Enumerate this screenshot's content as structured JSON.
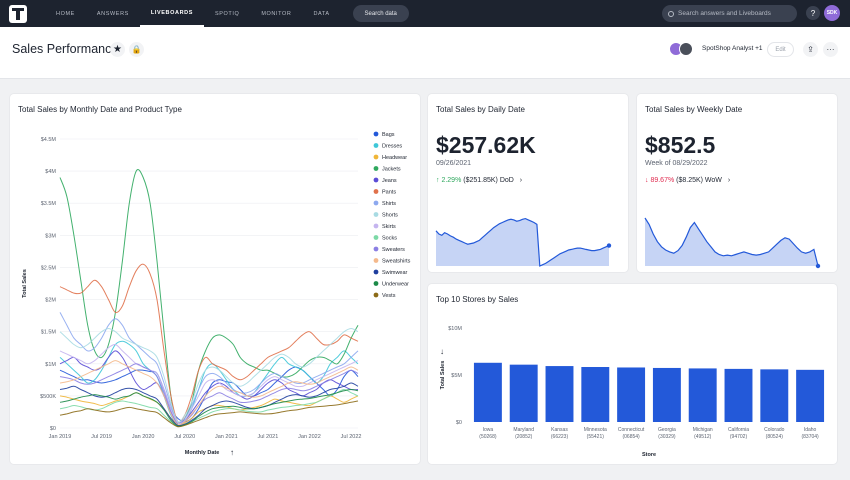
{
  "nav": {
    "tabs": [
      {
        "label": "HOME"
      },
      {
        "label": "ANSWERS"
      },
      {
        "label": "LIVEBOARDS"
      },
      {
        "label": "SPOTIQ"
      },
      {
        "label": "MONITOR"
      },
      {
        "label": "DATA"
      }
    ],
    "active_tab": "LIVEBOARDS",
    "search_data_label": "Search data",
    "global_search_placeholder": "Search answers and Liveboards",
    "help_label": "?",
    "user_initials": "SDK"
  },
  "header": {
    "title": "Sales Performance",
    "star_icon": "★",
    "lock_icon": "🔒",
    "shared_with": "SpotShop Analyst +1",
    "edit_label": "Edit",
    "share_icon": "⇪",
    "more_icon": "···"
  },
  "cards": {
    "main": {
      "title": "Total Sales by Monthly Date and Product Type"
    },
    "daily": {
      "title": "Total Sales by Daily Date",
      "value": "$257.62K",
      "date": "09/26/2021",
      "change_pct": "↑ 2.29%",
      "change_abs": "($251.85K) DoD",
      "change_color": "#2fa85e"
    },
    "weekly": {
      "title": "Total Sales by Weekly Date",
      "value": "$852.5",
      "date": "Week of 08/29/2022",
      "change_pct": "↓ 89.67%",
      "change_abs": "($8.25K) WoW",
      "change_color": "#e02c50"
    },
    "stores": {
      "title": "Top 10 Stores by Sales"
    }
  },
  "chart_data": [
    {
      "type": "line",
      "title": "Total Sales by Monthly Date and Product Type",
      "xlabel": "Monthly Date",
      "ylabel": "Total Sales",
      "x_tick_labels": [
        "Jan 2019",
        "Jul 2019",
        "Jan 2020",
        "Jul 2020",
        "Jan 2021",
        "Jul 2021",
        "Jan 2022",
        "Jul 2022"
      ],
      "y_tick_labels": [
        "$0",
        "$500K",
        "$1M",
        "$1.5M",
        "$2M",
        "$2.5M",
        "$3M",
        "$3.5M",
        "$4M",
        "$4.5M"
      ],
      "ylim": [
        0,
        4500000
      ],
      "legend_position": "right",
      "x_count": 44,
      "series": [
        {
          "name": "Bags",
          "color": "#2359d9",
          "values": [
            0.9,
            0.85,
            0.8,
            0.75,
            0.75,
            0.72,
            0.7,
            0.72,
            0.75,
            0.8,
            0.85,
            0.9,
            0.9,
            0.88,
            0.85,
            0.6,
            0.3,
            0.15,
            0.1,
            0.15,
            0.3,
            0.5,
            0.7,
            0.75,
            0.72,
            0.7,
            0.6,
            0.5,
            0.5,
            0.55,
            0.6,
            0.7,
            0.8,
            0.9,
            0.95,
            0.9,
            0.8,
            0.7,
            0.6,
            0.5,
            0.6,
            0.8,
            0.9,
            0.8
          ]
        },
        {
          "name": "Dresses",
          "color": "#3ec7d8",
          "values": [
            1.1,
            1.0,
            0.9,
            0.8,
            0.7,
            0.75,
            0.9,
            1.1,
            1.3,
            1.35,
            1.3,
            1.2,
            1.0,
            0.9,
            0.8,
            0.5,
            0.2,
            0.05,
            0.1,
            0.3,
            0.6,
            0.9,
            1.0,
            0.9,
            0.75,
            0.6,
            0.5,
            0.5,
            0.55,
            0.7,
            0.85,
            1.0,
            1.1,
            1.0,
            0.95,
            0.9,
            0.8,
            0.7,
            0.8,
            1.0,
            1.1,
            1.2,
            1.1,
            1.0
          ]
        },
        {
          "name": "Headwear",
          "color": "#f0b638",
          "values": [
            0.5,
            0.48,
            0.45,
            0.42,
            0.4,
            0.38,
            0.35,
            0.38,
            0.42,
            0.45,
            0.5,
            0.55,
            0.5,
            0.45,
            0.4,
            0.3,
            0.15,
            0.05,
            0.08,
            0.15,
            0.25,
            0.3,
            0.35,
            0.35,
            0.33,
            0.3,
            0.28,
            0.3,
            0.32,
            0.35,
            0.4,
            0.45,
            0.42,
            0.4,
            0.38,
            0.36,
            0.35,
            0.4,
            0.45,
            0.5,
            0.45,
            0.4,
            0.45,
            0.5
          ]
        },
        {
          "name": "Jackets",
          "color": "#2fa85e",
          "values": [
            3.9,
            3.6,
            3.0,
            2.3,
            1.6,
            1.2,
            1.1,
            1.3,
            1.8,
            2.6,
            3.5,
            4.0,
            3.9,
            3.5,
            2.6,
            1.5,
            0.5,
            0.05,
            0.15,
            0.4,
            0.9,
            1.2,
            1.4,
            1.45,
            1.4,
            1.3,
            1.1,
            1.0,
            0.95,
            0.9,
            0.9,
            0.85,
            0.8,
            0.8,
            0.85,
            0.95,
            1.05,
            1.1,
            1.1,
            1.05,
            1.0,
            1.15,
            1.4,
            1.6
          ]
        },
        {
          "name": "Jeans",
          "color": "#5b4cd6",
          "values": [
            1.0,
            1.05,
            1.1,
            1.0,
            0.95,
            0.9,
            0.95,
            1.1,
            1.2,
            1.1,
            0.9,
            0.7,
            0.6,
            0.65,
            0.7,
            0.5,
            0.25,
            0.08,
            0.12,
            0.25,
            0.4,
            0.55,
            0.65,
            0.7,
            0.65,
            0.55,
            0.5,
            0.45,
            0.5,
            0.6,
            0.7,
            0.75,
            0.7,
            0.6,
            0.55,
            0.5,
            0.55,
            0.6,
            0.7,
            0.75,
            0.7,
            0.65,
            0.6,
            0.6
          ]
        },
        {
          "name": "Pants",
          "color": "#e0714b",
          "values": [
            2.2,
            2.15,
            2.1,
            2.1,
            2.2,
            2.3,
            2.2,
            2.0,
            1.8,
            1.9,
            2.2,
            2.45,
            2.55,
            2.4,
            2.0,
            1.2,
            0.5,
            0.1,
            0.2,
            0.5,
            0.9,
            1.1,
            1.0,
            0.95,
            0.9,
            0.8,
            0.75,
            0.8,
            0.9,
            1.0,
            1.1,
            1.15,
            1.2,
            1.25,
            1.35,
            1.45,
            1.5,
            1.4,
            1.3,
            1.3,
            1.35,
            1.45,
            1.4,
            1.35
          ]
        },
        {
          "name": "Shirts",
          "color": "#8da9ef",
          "values": [
            1.8,
            1.6,
            1.4,
            1.3,
            1.2,
            1.25,
            1.4,
            1.6,
            1.7,
            1.6,
            1.4,
            1.3,
            1.2,
            1.1,
            1.0,
            0.7,
            0.35,
            0.1,
            0.15,
            0.35,
            0.6,
            0.8,
            0.85,
            0.8,
            0.7,
            0.6,
            0.55,
            0.55,
            0.6,
            0.7,
            0.8,
            0.85,
            0.8,
            0.75,
            0.7,
            0.7,
            0.75,
            0.8,
            0.85,
            0.9,
            0.95,
            1.0,
            1.1,
            1.2
          ]
        },
        {
          "name": "Shorts",
          "color": "#a8dbe3",
          "values": [
            1.5,
            1.4,
            1.3,
            1.25,
            1.3,
            1.4,
            1.5,
            1.55,
            1.5,
            1.4,
            1.35,
            1.3,
            1.25,
            1.2,
            1.1,
            0.8,
            0.4,
            0.1,
            0.2,
            0.4,
            0.7,
            0.9,
            0.95,
            0.9,
            0.8,
            0.7,
            0.65,
            0.7,
            0.8,
            0.9,
            1.0,
            1.1,
            1.15,
            1.1,
            1.0,
            0.95,
            1.0,
            1.1,
            1.2,
            1.3,
            1.4,
            1.5,
            1.55,
            1.5
          ]
        },
        {
          "name": "Skirts",
          "color": "#c5b5ef",
          "values": [
            1.2,
            1.15,
            1.1,
            1.05,
            1.0,
            1.05,
            1.15,
            1.25,
            1.3,
            1.2,
            1.1,
            1.0,
            0.95,
            0.9,
            0.85,
            0.6,
            0.3,
            0.08,
            0.12,
            0.3,
            0.5,
            0.7,
            0.75,
            0.7,
            0.6,
            0.55,
            0.5,
            0.5,
            0.55,
            0.65,
            0.75,
            0.8,
            0.75,
            0.7,
            0.65,
            0.65,
            0.7,
            0.75,
            0.8,
            0.85,
            0.9,
            0.95,
            1.0,
            1.05
          ]
        },
        {
          "name": "Socks",
          "color": "#7cd9a6",
          "values": [
            0.3,
            0.32,
            0.35,
            0.33,
            0.3,
            0.28,
            0.3,
            0.35,
            0.4,
            0.42,
            0.4,
            0.38,
            0.35,
            0.32,
            0.3,
            0.2,
            0.1,
            0.03,
            0.05,
            0.1,
            0.15,
            0.2,
            0.25,
            0.28,
            0.3,
            0.3,
            0.28,
            0.26,
            0.25,
            0.25,
            0.28,
            0.3,
            0.32,
            0.33,
            0.35,
            0.36,
            0.38,
            0.4,
            0.45,
            0.5,
            0.55,
            0.6,
            0.55,
            0.5
          ]
        },
        {
          "name": "Sweaters",
          "color": "#8b7fe3",
          "values": [
            0.8,
            0.78,
            0.75,
            0.7,
            0.68,
            0.7,
            0.75,
            0.8,
            0.85,
            0.9,
            0.95,
            1.0,
            0.95,
            0.9,
            0.8,
            0.55,
            0.25,
            0.05,
            0.1,
            0.2,
            0.35,
            0.45,
            0.5,
            0.55,
            0.5,
            0.45,
            0.4,
            0.4,
            0.42,
            0.45,
            0.5,
            0.55,
            0.6,
            0.62,
            0.6,
            0.58,
            0.6,
            0.65,
            0.7,
            0.75,
            0.8,
            0.85,
            0.9,
            0.85
          ]
        },
        {
          "name": "Sweatshirts",
          "color": "#f4b98c",
          "values": [
            0.7,
            0.72,
            0.75,
            0.8,
            0.85,
            0.9,
            0.95,
            1.0,
            1.05,
            1.0,
            0.95,
            0.9,
            0.85,
            0.8,
            0.7,
            0.5,
            0.22,
            0.05,
            0.1,
            0.22,
            0.35,
            0.5,
            0.6,
            0.65,
            0.62,
            0.58,
            0.55,
            0.5,
            0.48,
            0.5,
            0.55,
            0.6,
            0.65,
            0.7,
            0.72,
            0.7,
            0.68,
            0.7,
            0.75,
            0.8,
            0.85,
            0.9,
            0.95,
            0.9
          ]
        },
        {
          "name": "Swimwear",
          "color": "#1f3f9e",
          "values": [
            0.6,
            0.62,
            0.65,
            0.6,
            0.55,
            0.5,
            0.48,
            0.5,
            0.55,
            0.6,
            0.62,
            0.6,
            0.55,
            0.5,
            0.45,
            0.3,
            0.15,
            0.04,
            0.06,
            0.12,
            0.2,
            0.3,
            0.35,
            0.4,
            0.42,
            0.4,
            0.36,
            0.32,
            0.3,
            0.32,
            0.35,
            0.4,
            0.45,
            0.5,
            0.52,
            0.5,
            0.48,
            0.5,
            0.55,
            0.6,
            0.62,
            0.65,
            0.7,
            0.65
          ]
        },
        {
          "name": "Underwear",
          "color": "#1c8a48",
          "values": [
            0.4,
            0.42,
            0.45,
            0.48,
            0.5,
            0.52,
            0.5,
            0.48,
            0.45,
            0.48,
            0.5,
            0.55,
            0.5,
            0.46,
            0.4,
            0.28,
            0.12,
            0.03,
            0.05,
            0.1,
            0.18,
            0.25,
            0.3,
            0.32,
            0.33,
            0.34,
            0.32,
            0.3,
            0.3,
            0.32,
            0.35,
            0.38,
            0.4,
            0.42,
            0.44,
            0.45,
            0.46,
            0.48,
            0.5,
            0.52,
            0.55,
            0.58,
            0.6,
            0.58
          ]
        },
        {
          "name": "Vests",
          "color": "#8c6b18",
          "values": [
            0.2,
            0.22,
            0.25,
            0.27,
            0.3,
            0.28,
            0.26,
            0.25,
            0.27,
            0.3,
            0.32,
            0.3,
            0.28,
            0.26,
            0.24,
            0.16,
            0.08,
            0.02,
            0.04,
            0.08,
            0.12,
            0.16,
            0.2,
            0.22,
            0.23,
            0.24,
            0.25,
            0.24,
            0.23,
            0.22,
            0.22,
            0.23,
            0.25,
            0.27,
            0.28,
            0.3,
            0.32,
            0.33,
            0.34,
            0.35,
            0.36,
            0.38,
            0.4,
            0.42
          ]
        }
      ]
    },
    {
      "type": "area",
      "title": "Total Sales by Daily Date",
      "color": "#2359d9",
      "values": [
        0.55,
        0.5,
        0.48,
        0.52,
        0.5,
        0.47,
        0.45,
        0.42,
        0.4,
        0.38,
        0.36,
        0.34,
        0.35,
        0.36,
        0.38,
        0.4,
        0.44,
        0.48,
        0.52,
        0.56,
        0.6,
        0.63,
        0.66,
        0.68,
        0.7,
        0.72,
        0.73,
        0.72,
        0.7,
        0.71,
        0.73,
        0.74,
        0.72,
        0.7,
        0.68,
        0.65,
        0.0,
        0.02,
        0.04,
        0.07,
        0.1,
        0.13,
        0.16,
        0.19,
        0.21,
        0.23,
        0.25,
        0.26,
        0.27,
        0.28,
        0.28,
        0.27,
        0.26,
        0.25,
        0.24,
        0.24,
        0.25,
        0.26,
        0.28,
        0.3,
        0.32
      ]
    },
    {
      "type": "area",
      "title": "Total Sales by Weekly Date",
      "color": "#2359d9",
      "values": [
        0.75,
        0.65,
        0.5,
        0.38,
        0.3,
        0.25,
        0.22,
        0.2,
        0.24,
        0.32,
        0.45,
        0.6,
        0.68,
        0.58,
        0.48,
        0.38,
        0.3,
        0.22,
        0.18,
        0.16,
        0.17,
        0.16,
        0.18,
        0.2,
        0.22,
        0.2,
        0.18,
        0.17,
        0.18,
        0.2,
        0.22,
        0.28,
        0.34,
        0.4,
        0.44,
        0.42,
        0.35,
        0.28,
        0.22,
        0.2,
        0.22,
        0.26,
        0.0
      ]
    },
    {
      "type": "bar",
      "title": "Top 10 Stores by Sales",
      "xlabel": "Store",
      "ylabel": "Total Sales",
      "y_tick_labels": [
        "$0",
        "$5M",
        "$10M"
      ],
      "ylim": [
        0,
        10000000
      ],
      "color": "#2359d9",
      "categories": [
        {
          "name": "Iowa",
          "id": "(50268)"
        },
        {
          "name": "Maryland",
          "id": "(20852)"
        },
        {
          "name": "Kansas",
          "id": "(66223)"
        },
        {
          "name": "Minnesota",
          "id": "(55421)"
        },
        {
          "name": "Connecticut",
          "id": "(06854)"
        },
        {
          "name": "Georgia",
          "id": "(30329)"
        },
        {
          "name": "Michigan",
          "id": "(49512)"
        },
        {
          "name": "California",
          "id": "(94702)"
        },
        {
          "name": "Colorado",
          "id": "(80524)"
        },
        {
          "name": "Idaho",
          "id": "(83704)"
        }
      ],
      "values": [
        6300000,
        6100000,
        5950000,
        5850000,
        5800000,
        5750000,
        5700000,
        5650000,
        5600000,
        5550000
      ]
    }
  ]
}
